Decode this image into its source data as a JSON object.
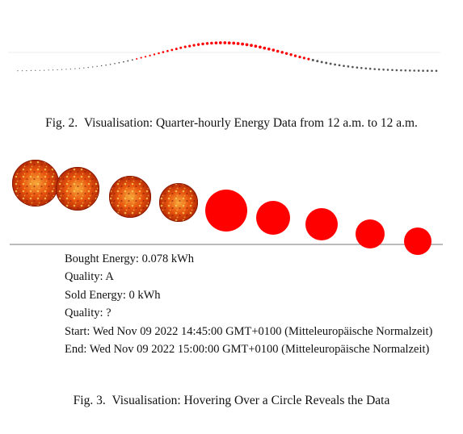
{
  "fig2": {
    "caption_label": "Fig. 2.",
    "caption_text": "Visualisation: Quarter-hourly Energy Data from 12 a.m. to 12 a.m."
  },
  "fig3": {
    "caption_label": "Fig. 3.",
    "caption_text": "Visualisation: Hovering Over a Circle Reveals the Data",
    "tooltip": {
      "bought_energy": "Bought Energy: 0.078 kWh",
      "quality_bought": "Quality: A",
      "sold_energy": "Sold Energy: 0 kWh",
      "quality_sold": "Quality: ?",
      "start": "Start: Wed Nov 09 2022 14:45:00 GMT+0100 (Mitteleuropäische Normalzeit)",
      "end": "End: Wed Nov 09 2022 15:00:00 GMT+0100 (Mitteleuropäische Normalzeit)"
    }
  },
  "colors": {
    "sold_red": "#ff0000",
    "sun_orange": "#e8550f",
    "sun_dark": "#8a1a05",
    "grey_dot": "#555555",
    "axis_line": "#777777"
  },
  "chart_data": [
    {
      "type": "scatter",
      "description_in_image": "quarter-hourly dots along a bell-shaped path",
      "points": 96,
      "title": "",
      "xlabel": "",
      "ylabel": ""
    },
    {
      "type": "scatter",
      "circles": [
        {
          "style": "sun"
        },
        {
          "style": "sun"
        },
        {
          "style": "sun"
        },
        {
          "style": "sun"
        },
        {
          "style": "red"
        },
        {
          "style": "red"
        },
        {
          "style": "red"
        },
        {
          "style": "red"
        },
        {
          "style": "red"
        }
      ]
    }
  ]
}
